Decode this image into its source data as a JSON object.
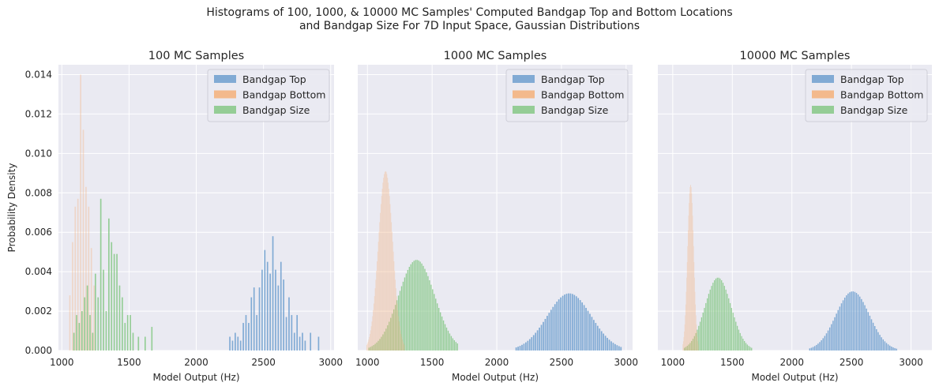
{
  "figure": {
    "title_line1": "Histograms of 100, 1000, & 10000 MC Samples' Computed Bandgap Top and Bottom Locations",
    "title_line2": "and Bandgap Size For 7D Input Space, Gaussian Distributions"
  },
  "colors": {
    "top": "#6e9fcf",
    "bottom": "#f5b07a",
    "size": "#86c886",
    "axes_bg": "#eaeaf2",
    "grid": "#ffffff"
  },
  "chart_data": [
    {
      "type": "bar",
      "title": "100 MC Samples",
      "xlabel": "Model Output (Hz)",
      "ylabel": "Probability Density",
      "xlim": [
        975,
        3025
      ],
      "ylim": [
        0,
        0.0145
      ],
      "xticks": [
        1000,
        1500,
        2000,
        2500,
        3000
      ],
      "yticks": [
        0.0,
        0.002,
        0.004,
        0.006,
        0.008,
        0.01,
        0.012,
        0.014
      ],
      "ytick_labels": [
        "0.000",
        "0.002",
        "0.004",
        "0.006",
        "0.008",
        "0.010",
        "0.012",
        "0.014"
      ],
      "grid": true,
      "legend": {
        "location": "upper right",
        "entries": [
          "Bandgap Top",
          "Bandgap Bottom",
          "Bandgap Size"
        ]
      },
      "series": [
        {
          "name": "Bandgap Top",
          "color_key": "top",
          "x": [
            2250,
            2270,
            2290,
            2310,
            2330,
            2350,
            2370,
            2390,
            2410,
            2430,
            2450,
            2470,
            2490,
            2510,
            2530,
            2550,
            2570,
            2590,
            2610,
            2630,
            2650,
            2670,
            2690,
            2710,
            2730,
            2750,
            2770,
            2790,
            2810,
            2850,
            2910
          ],
          "values": [
            0.0007,
            0.0005,
            0.0009,
            0.0007,
            0.0005,
            0.0014,
            0.0018,
            0.0014,
            0.0027,
            0.0032,
            0.0018,
            0.0032,
            0.0041,
            0.0051,
            0.0045,
            0.0039,
            0.0058,
            0.0041,
            0.0033,
            0.0045,
            0.0036,
            0.0017,
            0.0027,
            0.0018,
            0.0009,
            0.0018,
            0.0007,
            0.0009,
            0.0005,
            0.0009,
            0.0007
          ]
        },
        {
          "name": "Bandgap Size",
          "color_key": "size",
          "x": [
            1090,
            1110,
            1130,
            1150,
            1170,
            1190,
            1210,
            1230,
            1250,
            1270,
            1290,
            1310,
            1330,
            1350,
            1370,
            1390,
            1410,
            1430,
            1450,
            1470,
            1490,
            1510,
            1530,
            1570,
            1620,
            1670
          ],
          "values": [
            0.0009,
            0.0018,
            0.0014,
            0.002,
            0.0027,
            0.0033,
            0.0018,
            0.0009,
            0.0039,
            0.0027,
            0.0077,
            0.0041,
            0.002,
            0.0067,
            0.0055,
            0.0049,
            0.0049,
            0.0033,
            0.0027,
            0.0014,
            0.0018,
            0.0018,
            0.0009,
            0.0007,
            0.0007,
            0.0012
          ]
        },
        {
          "name": "Bandgap Bottom",
          "color_key": "bottom",
          "x": [
            1060,
            1080,
            1100,
            1120,
            1140,
            1160,
            1180,
            1200,
            1220,
            1240
          ],
          "values": [
            0.0028,
            0.0055,
            0.0073,
            0.0077,
            0.014,
            0.0112,
            0.0083,
            0.0073,
            0.0052,
            0.0033
          ]
        }
      ]
    },
    {
      "type": "bar",
      "title": "1000 MC Samples",
      "xlabel": "Model Output (Hz)",
      "xlim": [
        925,
        3050
      ],
      "ylim": [
        0,
        0.0145
      ],
      "xticks": [
        1000,
        1500,
        2000,
        2500,
        3000
      ],
      "grid": true,
      "legend": {
        "location": "upper right",
        "entries": [
          "Bandgap Top",
          "Bandgap Bottom",
          "Bandgap Size"
        ]
      },
      "series": [
        {
          "name": "Bandgap Top",
          "color_key": "top",
          "center": 2560,
          "sigma": 170,
          "peak": 0.0029,
          "bin_width": 15,
          "range": [
            2150,
            2970
          ]
        },
        {
          "name": "Bandgap Size",
          "color_key": "size",
          "center": 1380,
          "sigma": 140,
          "peak": 0.0046,
          "bin_width": 12,
          "range": [
            1000,
            1700
          ]
        },
        {
          "name": "Bandgap Bottom",
          "color_key": "bottom",
          "center": 1140,
          "sigma": 55,
          "peak": 0.0091,
          "bin_width": 5,
          "range": [
            980,
            1330
          ]
        }
      ]
    },
    {
      "type": "bar",
      "title": "10000 MC Samples",
      "xlabel": "Model Output (Hz)",
      "xlim": [
        875,
        3175
      ],
      "ylim": [
        0,
        0.0145
      ],
      "xticks": [
        1000,
        1500,
        2000,
        2500,
        3000
      ],
      "grid": true,
      "legend": {
        "location": "upper right",
        "entries": [
          "Bandgap Top",
          "Bandgap Bottom",
          "Bandgap Size"
        ]
      },
      "series": [
        {
          "name": "Bandgap Top",
          "color_key": "top",
          "center": 2510,
          "sigma": 140,
          "peak": 0.003,
          "bin_width": 14,
          "range": [
            2150,
            3000
          ]
        },
        {
          "name": "Bandgap Size",
          "color_key": "size",
          "center": 1380,
          "sigma": 110,
          "peak": 0.0037,
          "bin_width": 12,
          "range": [
            1050,
            1800
          ]
        },
        {
          "name": "Bandgap Bottom",
          "color_key": "bottom",
          "center": 1150,
          "sigma": 25,
          "peak": 0.0084,
          "bin_width": 4,
          "range": [
            1050,
            1250
          ]
        }
      ]
    }
  ]
}
